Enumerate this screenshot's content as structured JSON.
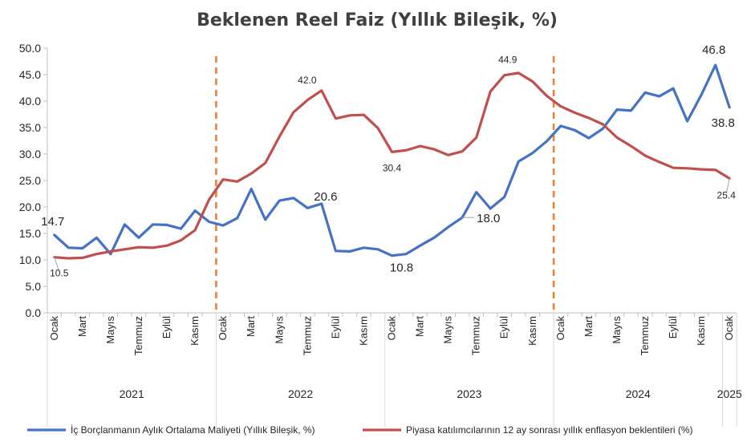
{
  "chart_data": {
    "type": "line",
    "title": "Beklenen Reel Faiz (Yıllık Bileşik, %)",
    "xlabel": "",
    "ylabel": "",
    "ylim": [
      0,
      50
    ],
    "yticks": [
      "0.0",
      "5.0",
      "10.0",
      "15.0",
      "20.0",
      "25.0",
      "30.0",
      "35.0",
      "40.0",
      "45.0",
      "50.0"
    ],
    "x_tick_labels": [
      {
        "i": 0,
        "label": "Ocak"
      },
      {
        "i": 2,
        "label": "Mart"
      },
      {
        "i": 4,
        "label": "Mayıs"
      },
      {
        "i": 6,
        "label": "Temmuz"
      },
      {
        "i": 8,
        "label": "Eylül"
      },
      {
        "i": 10,
        "label": "Kasım"
      },
      {
        "i": 12,
        "label": "Ocak"
      },
      {
        "i": 14,
        "label": "Mart"
      },
      {
        "i": 16,
        "label": "Mayıs"
      },
      {
        "i": 18,
        "label": "Temmuz"
      },
      {
        "i": 20,
        "label": "Eylül"
      },
      {
        "i": 22,
        "label": "Kasım"
      },
      {
        "i": 24,
        "label": "Ocak"
      },
      {
        "i": 26,
        "label": "Mart"
      },
      {
        "i": 28,
        "label": "Mayıs"
      },
      {
        "i": 30,
        "label": "Temmuz"
      },
      {
        "i": 32,
        "label": "Eylül"
      },
      {
        "i": 34,
        "label": "Kasım"
      },
      {
        "i": 36,
        "label": "Ocak"
      },
      {
        "i": 38,
        "label": "Mart"
      },
      {
        "i": 40,
        "label": "Mayıs"
      },
      {
        "i": 42,
        "label": "Temmuz"
      },
      {
        "i": 44,
        "label": "Eylül"
      },
      {
        "i": 46,
        "label": "Kasım"
      },
      {
        "i": 48,
        "label": "Ocak"
      }
    ],
    "years": [
      {
        "label": "2021",
        "start": 0,
        "end": 11
      },
      {
        "label": "2022",
        "start": 12,
        "end": 23
      },
      {
        "label": "2023",
        "start": 24,
        "end": 35
      },
      {
        "label": "2024",
        "start": 36,
        "end": 47
      },
      {
        "label": "2025",
        "start": 48,
        "end": 48
      }
    ],
    "vlines": [
      11.5,
      35.5
    ],
    "grid": false,
    "legend_position": "bottom",
    "series": [
      {
        "name": "İç Borçlanmanın Aylık Ortalama Maliyeti (Yıllık Bileşik, %)",
        "color": "#4472c4",
        "values": [
          14.7,
          12.3,
          12.2,
          14.2,
          11.1,
          16.7,
          14.2,
          16.7,
          16.6,
          15.9,
          19.3,
          17.2,
          16.5,
          17.9,
          23.4,
          17.6,
          21.2,
          21.7,
          19.8,
          20.6,
          11.7,
          11.6,
          12.3,
          12.0,
          10.8,
          11.1,
          12.7,
          14.2,
          16.2,
          18.0,
          22.8,
          19.7,
          21.9,
          28.6,
          30.2,
          32.4,
          35.3,
          34.5,
          33.0,
          34.8,
          38.4,
          38.2,
          41.6,
          40.9,
          42.4,
          36.2,
          41.2,
          46.8,
          38.8
        ]
      },
      {
        "name": "Piyasa katılımcılarının 12 ay sonrası yıllık enflasyon beklentileri (%)",
        "color": "#c0504d",
        "values": [
          10.5,
          10.3,
          10.4,
          11.1,
          11.6,
          12.0,
          12.4,
          12.3,
          12.7,
          13.7,
          15.6,
          21.4,
          25.2,
          24.8,
          26.3,
          28.3,
          33.3,
          37.9,
          40.2,
          42.0,
          36.7,
          37.3,
          37.4,
          34.9,
          30.4,
          30.7,
          31.5,
          30.9,
          29.8,
          30.5,
          33.1,
          41.8,
          44.9,
          45.3,
          43.7,
          41.0,
          39.0,
          37.8,
          36.8,
          35.6,
          33.1,
          31.5,
          29.7,
          28.5,
          27.4,
          27.3,
          27.1,
          27.0,
          25.4
        ]
      }
    ],
    "annotations": [
      {
        "series": 0,
        "i": 0,
        "text": "14.7"
      },
      {
        "series": 0,
        "i": 19,
        "text": "20.6"
      },
      {
        "series": 0,
        "i": 24,
        "text": "10.8"
      },
      {
        "series": 0,
        "i": 29,
        "text": "18.0"
      },
      {
        "series": 0,
        "i": 47,
        "text": "46.8"
      },
      {
        "series": 0,
        "i": 48,
        "text": "38.8"
      },
      {
        "series": 1,
        "i": 0,
        "text": "10.5"
      },
      {
        "series": 1,
        "i": 19,
        "text": "42.0"
      },
      {
        "series": 1,
        "i": 24,
        "text": "30.4"
      },
      {
        "series": 1,
        "i": 32,
        "text": "44.9"
      },
      {
        "series": 1,
        "i": 48,
        "text": "25.4"
      }
    ]
  }
}
